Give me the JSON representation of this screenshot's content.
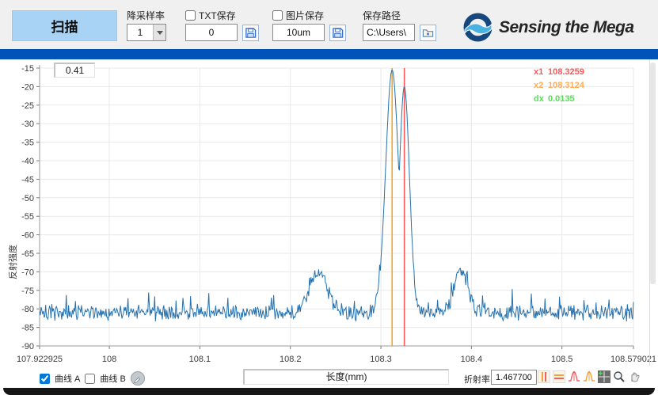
{
  "toolbar": {
    "scan_label": "扫描",
    "downsample": {
      "label": "降采样率",
      "value": "1"
    },
    "txt_save": {
      "label": "TXT保存",
      "value": "0",
      "checked": false
    },
    "img_save": {
      "label": "图片保存",
      "value": "10um",
      "checked": false
    },
    "save_path": {
      "label": "保存路径",
      "value": "C:\\Users\\"
    },
    "logo_text": "Sensing the Mega"
  },
  "chart": {
    "corner_value": "0.41",
    "ylabel": "反射强度",
    "xlabel": "长度(mm)"
  },
  "chart_data": {
    "type": "line",
    "xlabel": "长度(mm)",
    "ylabel": "反射强度",
    "xlim": [
      107.922925,
      108.579021
    ],
    "ylim": [
      -90,
      -15
    ],
    "x_tick_values": [
      107.922925,
      108,
      108.1,
      108.2,
      108.3,
      108.4,
      108.5,
      108.579021
    ],
    "x_tick_labels": [
      "107.922925",
      "108",
      "108.1",
      "108.2",
      "108.3",
      "108.4",
      "108.5",
      "108.579021"
    ],
    "y_tick_start": -15,
    "y_tick_end": -90,
    "y_tick_step": 5,
    "grid": true,
    "series": [
      {
        "name": "曲线 A",
        "color": "#2571ad",
        "baseline_db": -81,
        "noise_db": 2.5,
        "peaks": [
          {
            "center": 108.3124,
            "sigma": 0.01,
            "amp": 65.5
          },
          {
            "center": 108.3259,
            "sigma": 0.008,
            "amp": 61.0
          },
          {
            "center": 108.231,
            "sigma": 0.014,
            "amp": 11.0
          },
          {
            "center": 108.3885,
            "sigma": 0.011,
            "amp": 11.5
          }
        ]
      }
    ],
    "cursors": [
      {
        "name": "x2",
        "x": 108.3124,
        "color": "#f5a623"
      },
      {
        "name": "x1",
        "x": 108.3259,
        "color": "#ff5a5a"
      }
    ],
    "readouts": [
      {
        "label": "x1",
        "value": "108.3259",
        "color": "#ff5555"
      },
      {
        "label": "x2",
        "value": "108.3124",
        "color": "#ffaa55"
      },
      {
        "label": "dx",
        "value": "0.0135",
        "color": "#55e055"
      }
    ]
  },
  "bottom": {
    "curves": {
      "a": {
        "label": "曲线 A",
        "checked": true
      },
      "b": {
        "label": "曲线 B",
        "checked": false
      }
    },
    "refractive": {
      "label": "折射率",
      "value": "1.467700"
    }
  }
}
